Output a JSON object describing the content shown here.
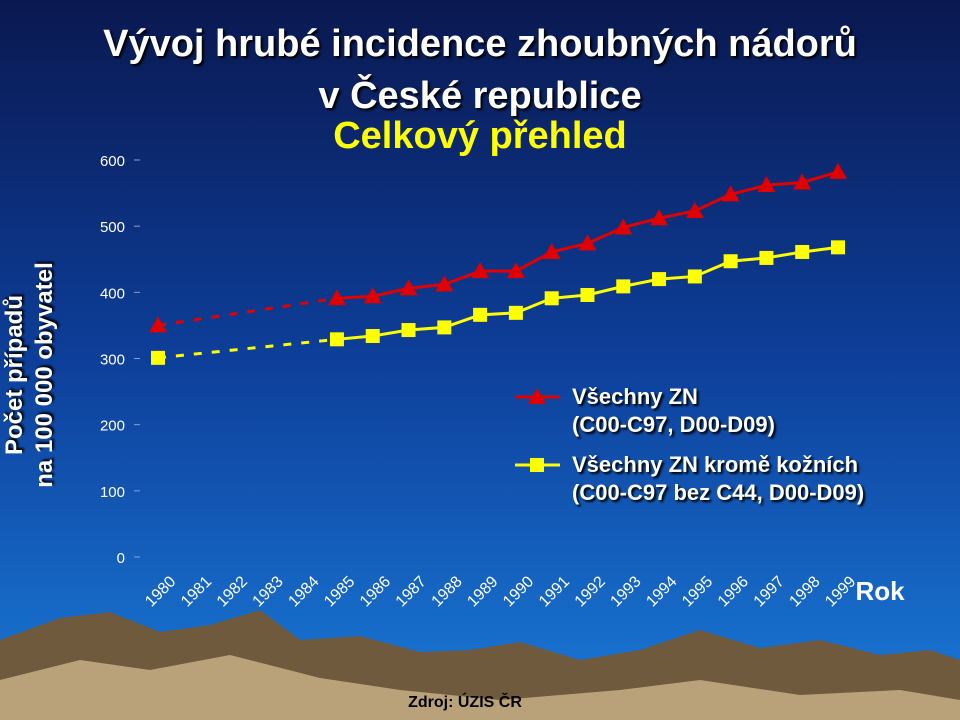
{
  "chart_data": {
    "type": "line",
    "title": "Vývoj hrubé incidence zhoubných nádorů\nv České republice",
    "subtitle": "Celkový přehled",
    "y_label": "Počet případů\nna 100 000 obyvatel",
    "x_label": "Rok",
    "source": "Zdroj: ÚZIS ČR",
    "categories": [
      "1980",
      "1981",
      "1982",
      "1983",
      "1984",
      "1985",
      "1986",
      "1987",
      "1988",
      "1989",
      "1990",
      "1991",
      "1992",
      "1993",
      "1994",
      "1995",
      "1996",
      "1997",
      "1998",
      "1999"
    ],
    "series": [
      {
        "name": "Všechny ZN\n(C00-C97, D00-D09)",
        "color": "#e00000",
        "marker": "triangle",
        "values": [
          350,
          null,
          null,
          null,
          null,
          391,
          394,
          406,
          412,
          432,
          432,
          461,
          474,
          498,
          512,
          523,
          548,
          562,
          566,
          582
        ]
      },
      {
        "name": "Všechny ZN kromě kožních\n(C00-C97 bez C44, D00-D09)",
        "color": "#ffff00",
        "marker": "square",
        "values": [
          301,
          null,
          null,
          null,
          null,
          329,
          334,
          343,
          347,
          366,
          369,
          391,
          396,
          409,
          420,
          424,
          447,
          452,
          461,
          468
        ]
      }
    ],
    "ylim": [
      0,
      600
    ],
    "yticks": [
      0,
      100,
      200,
      300,
      400,
      500,
      600
    ]
  }
}
